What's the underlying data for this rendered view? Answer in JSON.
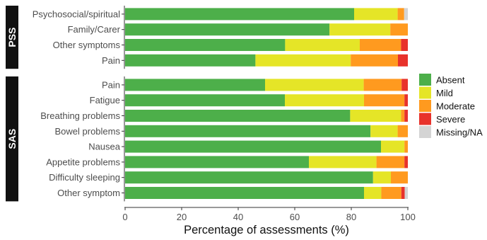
{
  "chart_data": {
    "type": "bar",
    "orientation": "horizontal",
    "stacked": true,
    "xlabel": "Percentage of assessments (%)",
    "xlim": [
      0,
      100
    ],
    "xticks": [
      0,
      20,
      40,
      60,
      80,
      100
    ],
    "grid": false,
    "legend_position": "right",
    "categories_colors": {
      "Absent": "#4daf4a",
      "Mild": "#e5e527",
      "Moderate": "#ff9a1f",
      "Severe": "#e8322b",
      "Missing/NA": "#d4d4d4"
    },
    "legend": [
      "Absent",
      "Mild",
      "Moderate",
      "Severe",
      "Missing/NA"
    ],
    "panels": [
      {
        "name": "PSS",
        "rows": [
          {
            "label": "Psychosocial/spiritual",
            "values": {
              "Absent": 81.0,
              "Mild": 15.4,
              "Moderate": 2.3,
              "Severe": 0.0,
              "Missing/NA": 1.3
            }
          },
          {
            "label": "Family/Carer",
            "values": {
              "Absent": 72.3,
              "Mild": 21.5,
              "Moderate": 6.2,
              "Severe": 0.0,
              "Missing/NA": 0.0
            }
          },
          {
            "label": "Other symptoms",
            "values": {
              "Absent": 56.6,
              "Mild": 26.4,
              "Moderate": 14.6,
              "Severe": 2.4,
              "Missing/NA": 0.0
            }
          },
          {
            "label": "Pain",
            "values": {
              "Absent": 46.1,
              "Mild": 33.7,
              "Moderate": 16.7,
              "Severe": 3.5,
              "Missing/NA": 0.0
            }
          }
        ]
      },
      {
        "name": "SAS",
        "rows": [
          {
            "label": "Pain",
            "values": {
              "Absent": 49.5,
              "Mild": 34.9,
              "Moderate": 13.4,
              "Severe": 2.2,
              "Missing/NA": 0.0
            }
          },
          {
            "label": "Fatigue",
            "values": {
              "Absent": 56.5,
              "Mild": 28.0,
              "Moderate": 14.3,
              "Severe": 1.2,
              "Missing/NA": 0.0
            }
          },
          {
            "label": "Breathing problems",
            "values": {
              "Absent": 79.6,
              "Mild": 18.0,
              "Moderate": 1.2,
              "Severe": 1.2,
              "Missing/NA": 0.0
            }
          },
          {
            "label": "Bowel problems",
            "values": {
              "Absent": 86.8,
              "Mild": 9.6,
              "Moderate": 3.6,
              "Severe": 0.0,
              "Missing/NA": 0.0
            }
          },
          {
            "label": "Nausea",
            "values": {
              "Absent": 90.5,
              "Mild": 8.3,
              "Moderate": 1.2,
              "Severe": 0.0,
              "Missing/NA": 0.0
            }
          },
          {
            "label": "Appetite problems",
            "values": {
              "Absent": 65.0,
              "Mild": 23.9,
              "Moderate": 9.9,
              "Severe": 1.2,
              "Missing/NA": 0.0
            }
          },
          {
            "label": "Difficulty sleeping",
            "values": {
              "Absent": 87.7,
              "Mild": 6.3,
              "Moderate": 6.0,
              "Severe": 0.0,
              "Missing/NA": 0.0
            }
          },
          {
            "label": "Other symptom",
            "values": {
              "Absent": 84.5,
              "Mild": 6.1,
              "Moderate": 7.1,
              "Severe": 1.2,
              "Missing/NA": 1.1
            }
          }
        ]
      }
    ]
  }
}
